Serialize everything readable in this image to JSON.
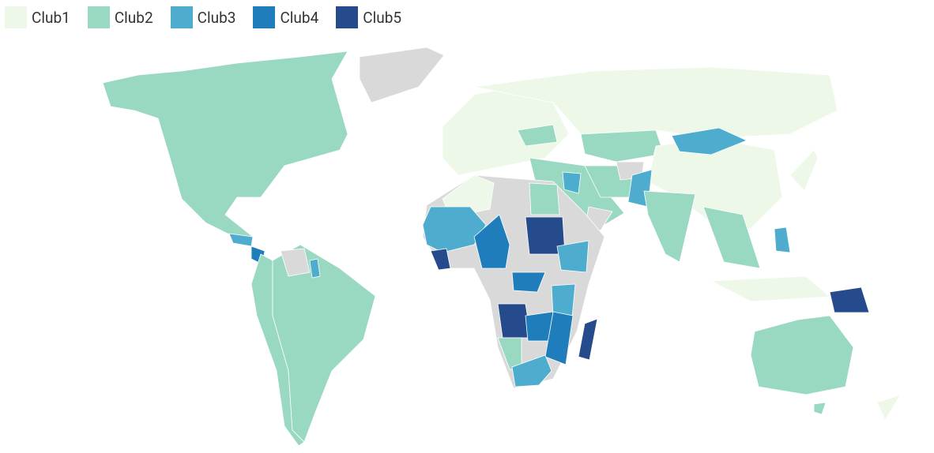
{
  "legend": {
    "items": [
      {
        "name": "Club1",
        "color": "#edf8e9"
      },
      {
        "name": "Club2",
        "color": "#99d8c1"
      },
      {
        "name": "Club3",
        "color": "#4eaccf"
      },
      {
        "name": "Club4",
        "color": "#1f7dbc"
      },
      {
        "name": "Club5",
        "color": "#254b8c"
      }
    ]
  }
}
